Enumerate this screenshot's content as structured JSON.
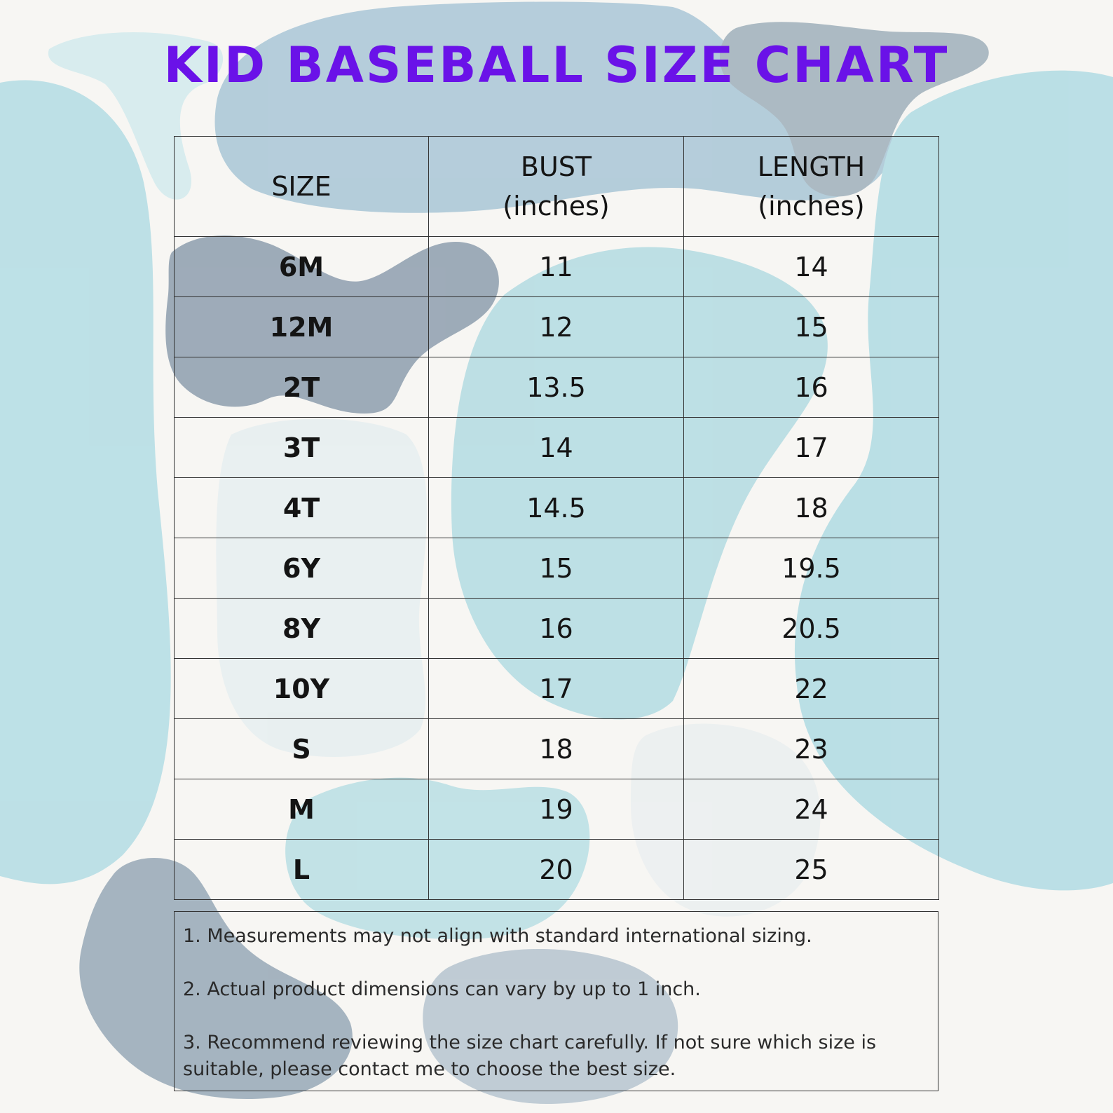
{
  "title": "Kid Baseball Size Chart",
  "table": {
    "headers": {
      "size": "SIZE",
      "bust_line1": "BUST",
      "bust_line2": "(inches)",
      "length_line1": "LENGTH",
      "length_line2": "(inches)"
    },
    "rows": [
      {
        "size": "6M",
        "bust": "11",
        "length": "14"
      },
      {
        "size": "12M",
        "bust": "12",
        "length": "15"
      },
      {
        "size": "2T",
        "bust": "13.5",
        "length": "16"
      },
      {
        "size": "3T",
        "bust": "14",
        "length": "17"
      },
      {
        "size": "4T",
        "bust": "14.5",
        "length": "18"
      },
      {
        "size": "6Y",
        "bust": "15",
        "length": "19.5"
      },
      {
        "size": "8Y",
        "bust": "16",
        "length": "20.5"
      },
      {
        "size": "10Y",
        "bust": "17",
        "length": "22"
      },
      {
        "size": "S",
        "bust": "18",
        "length": "23"
      },
      {
        "size": "M",
        "bust": "19",
        "length": "24"
      },
      {
        "size": "L",
        "bust": "20",
        "length": "25"
      }
    ]
  },
  "notes": [
    "1. Measurements may not align with standard international sizing.",
    "2. Actual product dimensions can vary by up to 1 inch.",
    "3. Recommend reviewing the size chart carefully. If not sure which size is suitable, please contact me to choose the best size."
  ],
  "colors": {
    "title": "#6a12e8",
    "background": "#f7f6f3",
    "blob_light_blue": "#a9d8e0",
    "blob_slate": "#8fa3b3",
    "border": "#333333"
  }
}
